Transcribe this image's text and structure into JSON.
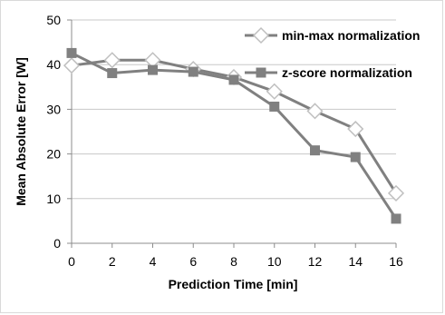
{
  "chart_data": {
    "type": "line",
    "xlabel": "Prediction Time [min]",
    "ylabel": "Mean Absolute Error [W]",
    "x": [
      0,
      2,
      4,
      6,
      8,
      10,
      12,
      14,
      16
    ],
    "xlim": [
      0,
      16
    ],
    "ylim": [
      0,
      50
    ],
    "xticks": [
      "0",
      "2",
      "4",
      "6",
      "8",
      "10",
      "12",
      "14",
      "16"
    ],
    "yticks": [
      "0",
      "10",
      "20",
      "30",
      "40",
      "50"
    ],
    "grid": "horizontal",
    "legend_position": "top-right",
    "series": [
      {
        "name": "min-max normalization",
        "marker": "diamond-open",
        "color": "#808080",
        "values": [
          39.8,
          41,
          41,
          39,
          37.2,
          34,
          29.6,
          25.6,
          11.2
        ]
      },
      {
        "name": "z-score normalization",
        "marker": "square-filled",
        "color": "#808080",
        "values": [
          42.6,
          38.1,
          38.8,
          38.4,
          36.6,
          30.6,
          20.8,
          19.3,
          5.5
        ]
      }
    ]
  }
}
